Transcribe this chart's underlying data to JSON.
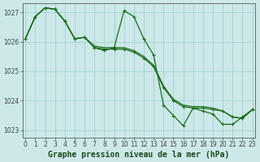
{
  "title": "Graphe pression niveau de la mer (hPa)",
  "background_color": "#cce8e8",
  "plot_background_color": "#cce8e8",
  "line_color": "#1a6b1a",
  "grid_color": "#99cccc",
  "axis_color": "#444444",
  "ylim": [
    1022.75,
    1027.3
  ],
  "xlim": [
    -0.3,
    23.3
  ],
  "yticks": [
    1023,
    1024,
    1025,
    1026,
    1027
  ],
  "xticks": [
    0,
    1,
    2,
    3,
    4,
    5,
    6,
    7,
    8,
    9,
    10,
    11,
    12,
    13,
    14,
    15,
    16,
    17,
    18,
    19,
    20,
    21,
    22,
    23
  ],
  "series": [
    {
      "y": [
        1026.1,
        1026.85,
        1027.15,
        1027.1,
        1026.7,
        1026.1,
        1026.15,
        1025.8,
        1025.7,
        1025.8,
        1027.05,
        1026.85,
        1026.1,
        1025.55,
        1023.85,
        1023.5,
        1023.15,
        1023.75,
        1023.65,
        1023.55,
        1023.2,
        1023.2,
        1023.45,
        1023.7
      ],
      "marker": true,
      "linestyle": "-"
    },
    {
      "y": [
        1026.1,
        1026.85,
        1027.15,
        1027.1,
        1026.7,
        1026.1,
        1026.15,
        1025.8,
        1025.75,
        1025.75,
        1025.75,
        1025.65,
        1025.45,
        1025.15,
        1024.45,
        1024.0,
        1023.8,
        1023.75,
        1023.75,
        1023.7,
        1023.65,
        1023.45,
        1023.4,
        1023.7
      ],
      "marker": true,
      "linestyle": "-"
    },
    {
      "y": [
        1026.1,
        1026.85,
        1027.15,
        1027.1,
        1026.7,
        1026.1,
        1026.15,
        1025.85,
        1025.8,
        1025.8,
        1025.8,
        1025.7,
        1025.5,
        1025.2,
        1024.5,
        1024.05,
        1023.85,
        1023.8,
        1023.8,
        1023.75,
        1023.65,
        1023.45,
        1023.4,
        1023.7
      ],
      "marker": false,
      "linestyle": "-"
    }
  ],
  "marker_symbol": "+",
  "marker_size": 3.5,
  "linewidth": 0.9,
  "tick_fontsize": 5.5,
  "title_fontsize": 7.0
}
